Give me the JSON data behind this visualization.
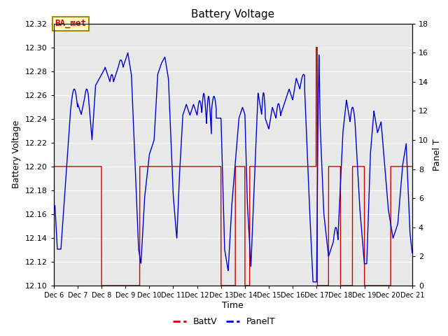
{
  "title": "Battery Voltage",
  "xlabel": "Time",
  "ylabel_left": "Battery Voltage",
  "ylabel_right": "Panel T",
  "xlim_start": 6,
  "xlim_end": 21,
  "ylim_left": [
    12.1,
    12.32
  ],
  "ylim_right": [
    0,
    18
  ],
  "yticks_left": [
    12.1,
    12.12,
    12.14,
    12.16,
    12.18,
    12.2,
    12.22,
    12.24,
    12.26,
    12.28,
    12.3,
    12.32
  ],
  "yticks_right": [
    0,
    2,
    4,
    6,
    8,
    10,
    12,
    14,
    16,
    18
  ],
  "xtick_labels": [
    "Dec 6",
    "Dec 7",
    "Dec 8",
    "Dec 9",
    "Dec 10",
    "Dec 11",
    "Dec 12",
    "Dec 13",
    "Dec 14",
    "Dec 15",
    "Dec 16",
    "Dec 17",
    "Dec 18",
    "Dec 19",
    "Dec 20",
    "Dec 21"
  ],
  "annotation_text": "BA_met",
  "annotation_bg": "#ffffcc",
  "annotation_border": "#aa8800",
  "bg_color": "#e8e8e8",
  "line_batt_color": "#cc0000",
  "line_panel_color": "#0000cc",
  "legend_batt_label": "BattV",
  "legend_panel_label": "PanelT",
  "figsize": [
    6.4,
    4.8
  ],
  "dpi": 100
}
